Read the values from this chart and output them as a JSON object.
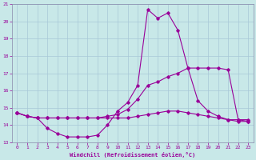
{
  "xlabel": "Windchill (Refroidissement éolien,°C)",
  "background_color": "#c8e8e8",
  "grid_color": "#a8c8d8",
  "line_color": "#990099",
  "spine_color": "#8888aa",
  "xlim": [
    -0.5,
    23.5
  ],
  "ylim": [
    13,
    21
  ],
  "xticks": [
    0,
    1,
    2,
    3,
    4,
    5,
    6,
    7,
    8,
    9,
    10,
    11,
    12,
    13,
    14,
    15,
    16,
    17,
    18,
    19,
    20,
    21,
    22,
    23
  ],
  "yticks": [
    13,
    14,
    15,
    16,
    17,
    18,
    19,
    20,
    21
  ],
  "line1_x": [
    0,
    1,
    2,
    3,
    4,
    5,
    6,
    7,
    8,
    9,
    10,
    11,
    12,
    13,
    14,
    15,
    16,
    17,
    18,
    19,
    20,
    21,
    22,
    23
  ],
  "line1_y": [
    14.7,
    14.5,
    14.4,
    13.8,
    13.5,
    13.3,
    13.3,
    13.3,
    13.4,
    14.0,
    14.8,
    15.3,
    16.3,
    20.7,
    20.2,
    20.5,
    19.5,
    17.3,
    15.4,
    14.8,
    14.5,
    14.3,
    14.3,
    14.2
  ],
  "line2_x": [
    0,
    1,
    2,
    3,
    4,
    5,
    6,
    7,
    8,
    9,
    10,
    11,
    12,
    13,
    14,
    15,
    16,
    17,
    18,
    19,
    20,
    21,
    22,
    23
  ],
  "line2_y": [
    14.7,
    14.5,
    14.4,
    14.4,
    14.4,
    14.4,
    14.4,
    14.4,
    14.4,
    14.5,
    14.6,
    14.9,
    15.5,
    16.3,
    16.5,
    16.8,
    17.0,
    17.3,
    17.3,
    17.3,
    17.3,
    17.2,
    14.3,
    14.3
  ],
  "line3_x": [
    0,
    1,
    2,
    3,
    4,
    5,
    6,
    7,
    8,
    9,
    10,
    11,
    12,
    13,
    14,
    15,
    16,
    17,
    18,
    19,
    20,
    21,
    22,
    23
  ],
  "line3_y": [
    14.7,
    14.5,
    14.4,
    14.4,
    14.4,
    14.4,
    14.4,
    14.4,
    14.4,
    14.4,
    14.4,
    14.4,
    14.5,
    14.6,
    14.7,
    14.8,
    14.8,
    14.7,
    14.6,
    14.5,
    14.4,
    14.3,
    14.2,
    14.2
  ]
}
